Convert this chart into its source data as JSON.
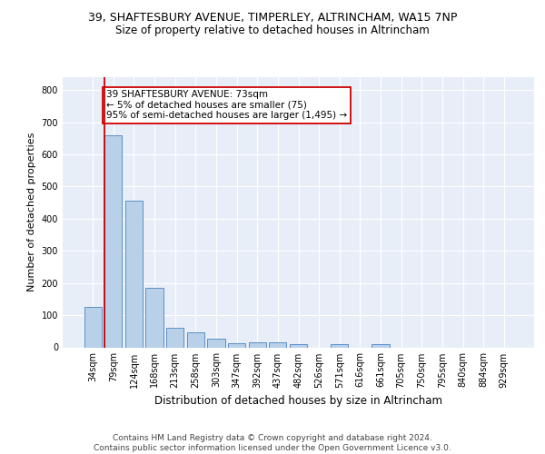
{
  "title1": "39, SHAFTESBURY AVENUE, TIMPERLEY, ALTRINCHAM, WA15 7NP",
  "title2": "Size of property relative to detached houses in Altrincham",
  "xlabel": "Distribution of detached houses by size in Altrincham",
  "ylabel": "Number of detached properties",
  "categories": [
    "34sqm",
    "79sqm",
    "124sqm",
    "168sqm",
    "213sqm",
    "258sqm",
    "303sqm",
    "347sqm",
    "392sqm",
    "437sqm",
    "482sqm",
    "526sqm",
    "571sqm",
    "616sqm",
    "661sqm",
    "705sqm",
    "750sqm",
    "795sqm",
    "840sqm",
    "884sqm",
    "929sqm"
  ],
  "values": [
    125,
    660,
    455,
    185,
    62,
    48,
    28,
    12,
    16,
    16,
    9,
    0,
    9,
    0,
    9,
    0,
    0,
    0,
    0,
    0,
    0
  ],
  "bar_color": "#b8d0e8",
  "bar_edge_color": "#5b8fc9",
  "highlight_index": 1,
  "highlight_color": "#cc0000",
  "annotation_text": "39 SHAFTESBURY AVENUE: 73sqm\n← 5% of detached houses are smaller (75)\n95% of semi-detached houses are larger (1,495) →",
  "annotation_box_color": "white",
  "annotation_box_edge": "#cc0000",
  "ylim": [
    0,
    840
  ],
  "yticks": [
    0,
    100,
    200,
    300,
    400,
    500,
    600,
    700,
    800
  ],
  "footer": "Contains HM Land Registry data © Crown copyright and database right 2024.\nContains public sector information licensed under the Open Government Licence v3.0.",
  "bg_color": "#e8eef8",
  "grid_color": "white",
  "title1_fontsize": 9,
  "title2_fontsize": 8.5,
  "xlabel_fontsize": 8.5,
  "ylabel_fontsize": 8,
  "footer_fontsize": 6.5,
  "annotation_fontsize": 7.5,
  "tick_fontsize": 7
}
